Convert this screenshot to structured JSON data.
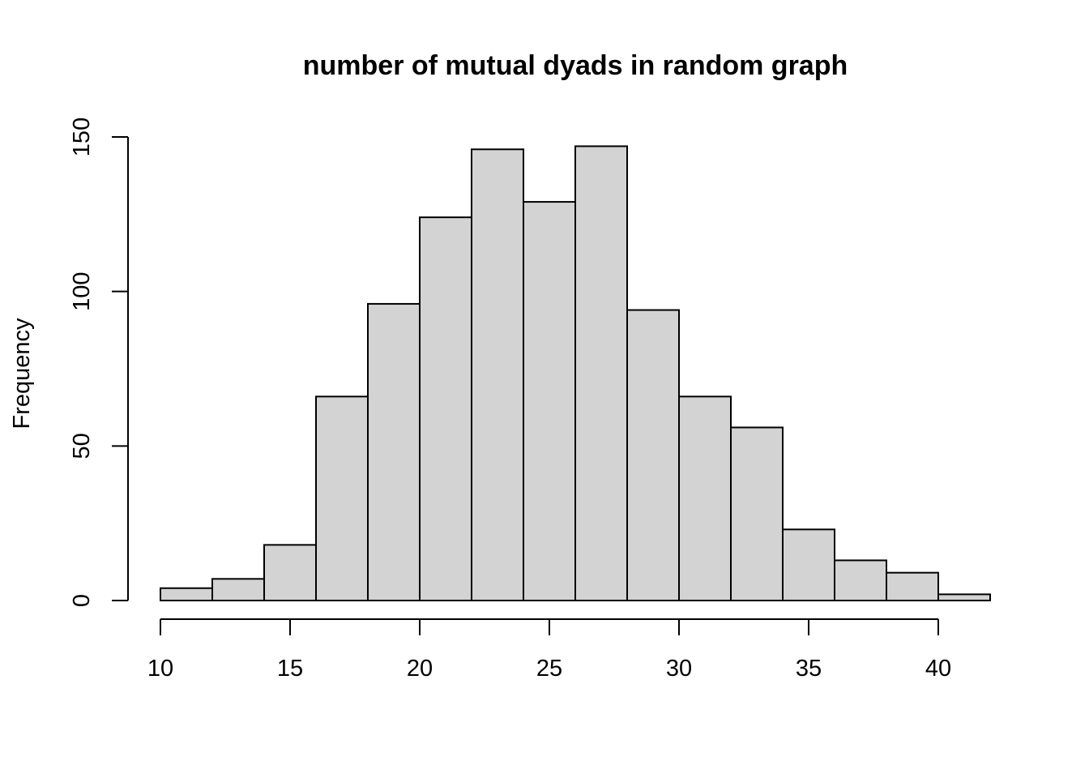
{
  "chart_data": {
    "type": "bar",
    "title": "number of mutual dyads in random graph",
    "xlabel": "",
    "ylabel": "Frequency",
    "bins": [
      {
        "start": 10,
        "end": 12,
        "count": 4
      },
      {
        "start": 12,
        "end": 14,
        "count": 7
      },
      {
        "start": 14,
        "end": 16,
        "count": 18
      },
      {
        "start": 16,
        "end": 18,
        "count": 66
      },
      {
        "start": 18,
        "end": 20,
        "count": 96
      },
      {
        "start": 20,
        "end": 22,
        "count": 124
      },
      {
        "start": 22,
        "end": 24,
        "count": 146
      },
      {
        "start": 24,
        "end": 26,
        "count": 129
      },
      {
        "start": 26,
        "end": 28,
        "count": 147
      },
      {
        "start": 28,
        "end": 30,
        "count": 94
      },
      {
        "start": 30,
        "end": 32,
        "count": 66
      },
      {
        "start": 32,
        "end": 34,
        "count": 56
      },
      {
        "start": 34,
        "end": 36,
        "count": 23
      },
      {
        "start": 36,
        "end": 38,
        "count": 13
      },
      {
        "start": 38,
        "end": 40,
        "count": 9
      },
      {
        "start": 40,
        "end": 42,
        "count": 2
      }
    ],
    "xticks": [
      10,
      15,
      20,
      25,
      30,
      35,
      40
    ],
    "yticks": [
      0,
      50,
      100,
      150
    ],
    "xlim": [
      10,
      42
    ],
    "ylim": [
      0,
      150
    ],
    "grid": false,
    "bar_color": "#d3d3d3"
  }
}
